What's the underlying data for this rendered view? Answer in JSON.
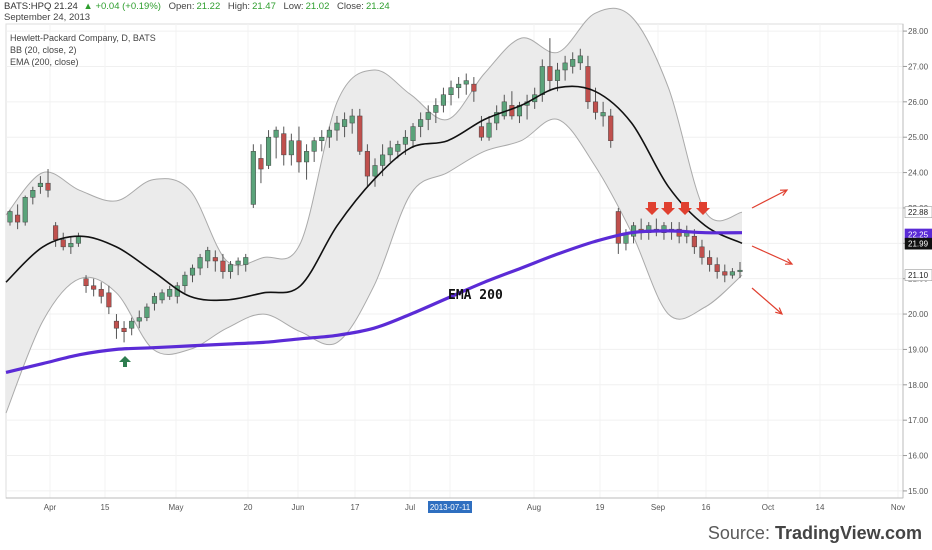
{
  "header": {
    "symbol": "BATS:HPQ",
    "last": "21.24",
    "change": "▲ +0.04 (+0.19%)",
    "open_label": "Open:",
    "open": "21.22",
    "high_label": "High:",
    "high": "21.47",
    "low_label": "Low:",
    "low": "21.02",
    "close_label": "Close:",
    "close": "21.24",
    "date": "September 24, 2013"
  },
  "legend": {
    "title": "Hewlett-Packard Company, D, BATS",
    "bb": "BB (20, close, 2)",
    "ema": "EMA (200, close)"
  },
  "source": {
    "prefix": "Source: ",
    "name": "TradingView.com"
  },
  "colors": {
    "up": "#5aa37a",
    "down": "#c0504d",
    "ema": "#5b2bd6",
    "basis": "#111111",
    "band_fill": "#ebebeb",
    "band_line": "#aaaaaa",
    "arrow_red": "#e04030",
    "arrow_green": "#2e7d4f"
  },
  "chart_data": {
    "type": "line",
    "title": "Hewlett-Packard Company, D, BATS",
    "ylim": [
      14.8,
      28.2
    ],
    "y_ticks": [
      "15.00",
      "16.00",
      "17.00",
      "18.00",
      "19.00",
      "20.00",
      "21.00",
      "22.00",
      "23.00",
      "24.00",
      "25.00",
      "26.00",
      "27.00",
      "28.00"
    ],
    "x_labels": [
      "Apr",
      "15",
      "May",
      "20",
      "Jun",
      "17",
      "Jul",
      "2013-07-11",
      "Aug",
      "19",
      "Sep",
      "16",
      "Oct",
      "14",
      "Nov"
    ],
    "price_tags": [
      {
        "text": "22.88",
        "value": 22.88,
        "style": "plain"
      },
      {
        "text": "22.25",
        "value": 22.25,
        "style": "ema"
      },
      {
        "text": "21.99",
        "value": 21.99,
        "style": "basis"
      },
      {
        "text": "21.10",
        "value": 21.1,
        "style": "plain"
      }
    ],
    "annotation": "EMA 200",
    "series": [
      {
        "name": "EMA (200, close)",
        "kind": "line",
        "y": [
          18.35,
          18.6,
          18.85,
          19.0,
          19.05,
          19.1,
          19.15,
          19.2,
          19.3,
          19.4,
          19.6,
          20.0,
          20.45,
          20.9,
          21.3,
          21.7,
          22.05,
          22.3,
          22.35,
          22.3,
          22.3
        ]
      },
      {
        "name": "BB basis",
        "kind": "line",
        "y": [
          20.9,
          21.9,
          22.2,
          21.9,
          21.2,
          20.5,
          20.4,
          20.6,
          20.8,
          22.5,
          23.8,
          24.7,
          24.9,
          25.5,
          25.9,
          26.4,
          26.3,
          25.4,
          23.6,
          22.5,
          22.0
        ]
      },
      {
        "name": "BB upper",
        "kind": "line",
        "y": [
          22.8,
          24.0,
          23.5,
          23.2,
          23.8,
          23.5,
          21.5,
          21.6,
          22.0,
          26.0,
          26.9,
          26.2,
          25.5,
          26.8,
          27.8,
          27.4,
          28.5,
          28.4,
          26.4,
          22.9,
          22.88
        ]
      },
      {
        "name": "BB lower",
        "kind": "line",
        "y": [
          17.2,
          19.8,
          21.0,
          20.6,
          19.0,
          19.0,
          19.6,
          20.0,
          19.5,
          19.2,
          20.8,
          23.4,
          24.0,
          24.6,
          24.9,
          25.5,
          24.2,
          22.3,
          20.0,
          20.2,
          21.1
        ]
      },
      {
        "name": "Price",
        "kind": "candlestick",
        "candles": [
          [
            22.6,
            22.95,
            22.9,
            22.5
          ],
          [
            22.8,
            23.1,
            22.6,
            22.4
          ],
          [
            22.6,
            23.35,
            23.3,
            22.5
          ],
          [
            23.3,
            23.6,
            23.5,
            23.1
          ],
          [
            23.6,
            23.9,
            23.7,
            23.4
          ],
          [
            23.7,
            24.1,
            23.5,
            23.3
          ],
          [
            22.5,
            22.6,
            22.1,
            21.9
          ],
          [
            22.1,
            22.3,
            21.9,
            21.8
          ],
          [
            21.9,
            22.2,
            22.0,
            21.7
          ],
          [
            22.0,
            22.3,
            22.2,
            21.9
          ],
          [
            21.0,
            21.1,
            20.8,
            20.6
          ],
          [
            20.8,
            21.0,
            20.7,
            20.5
          ],
          [
            20.7,
            20.9,
            20.5,
            20.3
          ],
          [
            20.6,
            20.8,
            20.2,
            20.0
          ],
          [
            19.8,
            20.0,
            19.6,
            19.3
          ],
          [
            19.6,
            19.8,
            19.5,
            19.2
          ],
          [
            19.6,
            19.9,
            19.8,
            19.4
          ],
          [
            19.8,
            20.1,
            19.9,
            19.6
          ],
          [
            19.9,
            20.3,
            20.2,
            19.8
          ],
          [
            20.3,
            20.6,
            20.5,
            20.1
          ],
          [
            20.4,
            20.7,
            20.6,
            20.3
          ],
          [
            20.5,
            20.8,
            20.7,
            20.4
          ],
          [
            20.5,
            20.9,
            20.8,
            20.3
          ],
          [
            20.8,
            21.2,
            21.1,
            20.6
          ],
          [
            21.1,
            21.4,
            21.3,
            20.9
          ],
          [
            21.3,
            21.7,
            21.6,
            21.1
          ],
          [
            21.5,
            21.9,
            21.8,
            21.3
          ],
          [
            21.6,
            21.8,
            21.5,
            21.2
          ],
          [
            21.5,
            21.7,
            21.2,
            21.0
          ],
          [
            21.2,
            21.5,
            21.4,
            21.0
          ],
          [
            21.4,
            21.6,
            21.5,
            21.1
          ],
          [
            21.4,
            21.7,
            21.6,
            21.2
          ],
          [
            23.1,
            24.8,
            24.6,
            23.0
          ],
          [
            24.4,
            24.8,
            24.1,
            23.7
          ],
          [
            24.2,
            25.2,
            25.0,
            24.1
          ],
          [
            25.0,
            25.3,
            25.2,
            24.4
          ],
          [
            25.1,
            25.3,
            24.5,
            24.2
          ],
          [
            24.5,
            25.1,
            24.9,
            24.2
          ],
          [
            24.9,
            25.3,
            24.3,
            24.0
          ],
          [
            24.3,
            24.8,
            24.6,
            23.8
          ],
          [
            24.6,
            25.0,
            24.9,
            24.3
          ],
          [
            24.9,
            25.2,
            25.0,
            24.6
          ],
          [
            25.0,
            25.3,
            25.2,
            24.7
          ],
          [
            25.2,
            25.6,
            25.4,
            24.9
          ],
          [
            25.3,
            25.7,
            25.5,
            25.0
          ],
          [
            25.4,
            25.8,
            25.6,
            25.1
          ],
          [
            25.6,
            25.8,
            24.6,
            24.5
          ],
          [
            24.6,
            24.8,
            23.9,
            23.6
          ],
          [
            23.9,
            24.4,
            24.2,
            23.6
          ],
          [
            24.2,
            24.8,
            24.5,
            23.9
          ],
          [
            24.5,
            24.9,
            24.7,
            24.3
          ],
          [
            24.6,
            24.9,
            24.8,
            24.4
          ],
          [
            24.8,
            25.2,
            25.0,
            24.5
          ],
          [
            24.9,
            25.4,
            25.3,
            24.7
          ],
          [
            25.3,
            25.7,
            25.5,
            25.0
          ],
          [
            25.5,
            25.9,
            25.7,
            25.2
          ],
          [
            25.7,
            26.1,
            25.9,
            25.4
          ],
          [
            25.9,
            26.4,
            26.2,
            25.7
          ],
          [
            26.2,
            26.6,
            26.4,
            25.9
          ],
          [
            26.4,
            26.7,
            26.5,
            26.1
          ],
          [
            26.5,
            26.8,
            26.6,
            26.2
          ],
          [
            26.5,
            26.7,
            26.3,
            26.0
          ],
          [
            25.3,
            25.6,
            25.0,
            24.9
          ],
          [
            25.0,
            25.6,
            25.4,
            24.9
          ],
          [
            25.4,
            25.9,
            25.7,
            25.2
          ],
          [
            25.6,
            26.2,
            26.0,
            25.5
          ],
          [
            25.9,
            26.3,
            25.6,
            25.5
          ],
          [
            25.6,
            26.0,
            25.9,
            25.4
          ],
          [
            25.9,
            26.2,
            26.0,
            25.5
          ],
          [
            26.0,
            26.4,
            26.2,
            25.8
          ],
          [
            26.2,
            27.2,
            27.0,
            26.0
          ],
          [
            27.0,
            27.8,
            26.6,
            26.3
          ],
          [
            26.6,
            27.1,
            26.9,
            26.3
          ],
          [
            26.9,
            27.3,
            27.1,
            26.6
          ],
          [
            27.0,
            27.4,
            27.2,
            26.8
          ],
          [
            27.1,
            27.5,
            27.3,
            26.9
          ],
          [
            27.0,
            27.3,
            26.0,
            25.8
          ],
          [
            26.0,
            26.4,
            25.7,
            25.5
          ],
          [
            25.6,
            26.0,
            25.7,
            25.3
          ],
          [
            25.6,
            25.8,
            24.9,
            24.7
          ],
          [
            22.9,
            23.0,
            22.0,
            21.7
          ],
          [
            22.0,
            22.4,
            22.3,
            21.8
          ],
          [
            22.2,
            22.6,
            22.5,
            22.0
          ],
          [
            22.4,
            22.7,
            22.3,
            22.1
          ],
          [
            22.3,
            22.6,
            22.5,
            22.1
          ],
          [
            22.4,
            22.7,
            22.4,
            22.2
          ],
          [
            22.3,
            22.6,
            22.5,
            22.1
          ],
          [
            22.4,
            22.6,
            22.4,
            22.1
          ],
          [
            22.4,
            22.6,
            22.2,
            22.0
          ],
          [
            22.2,
            22.5,
            22.3,
            22.0
          ],
          [
            22.2,
            22.4,
            21.9,
            21.7
          ],
          [
            21.9,
            22.1,
            21.6,
            21.4
          ],
          [
            21.6,
            21.8,
            21.4,
            21.2
          ],
          [
            21.4,
            21.6,
            21.2,
            21.0
          ],
          [
            21.2,
            21.4,
            21.1,
            20.9
          ],
          [
            21.1,
            21.3,
            21.2,
            21.0
          ],
          [
            21.2,
            21.47,
            21.24,
            21.02
          ]
        ]
      }
    ]
  }
}
